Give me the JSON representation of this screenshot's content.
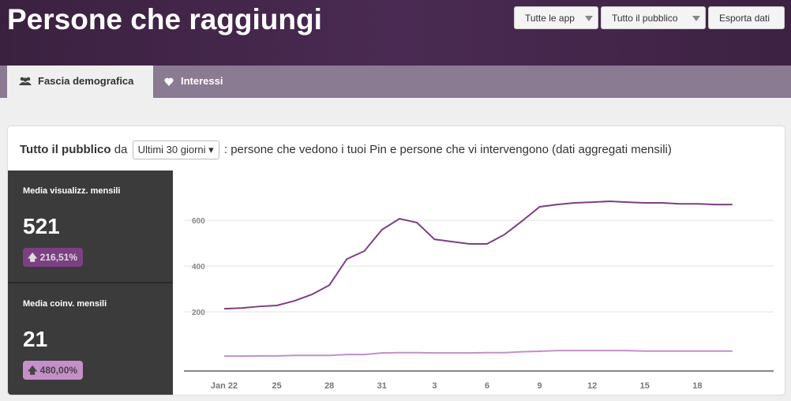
{
  "header": {
    "title": "Persone che raggiungi",
    "buttons": [
      "Tutte le app",
      "Tutto il pubblico",
      "Esporta dati"
    ]
  },
  "tabs": [
    "Fascia demografica",
    "Interessi"
  ],
  "card": {
    "audience": "Tutto il pubblico",
    "from": "da",
    "period": "Ultimi 30 giorni",
    "description": ": persone che vedono i tuoi Pin e persone che vi intervengono (dati aggregati mensili)"
  },
  "stats": [
    {
      "label": "Media visualizz. mensili",
      "value": "521",
      "change": "216,51%"
    },
    {
      "label": "Media coinv. mensili",
      "value": "21",
      "change": "480,00%"
    }
  ],
  "chart": {
    "type": "line",
    "categories": [
      "Jan 22",
      null,
      null,
      "25",
      null,
      null,
      "28",
      null,
      null,
      "31",
      null,
      null,
      "3",
      null,
      null,
      "6",
      null,
      null,
      "9",
      null,
      null,
      "12",
      null,
      null,
      "15",
      null,
      null,
      "18",
      null,
      null
    ],
    "series": [
      {
        "color": "#7d3f83",
        "values": [
          214,
          217,
          224,
          228,
          248,
          276,
          317,
          431,
          466,
          559,
          607,
          590,
          517,
          507,
          497,
          497,
          538,
          597,
          659,
          669,
          676,
          679,
          683,
          679,
          676,
          676,
          672,
          672,
          669,
          669
        ]
      },
      {
        "color": "#c58fca",
        "values": [
          7,
          7,
          8,
          8,
          10,
          10,
          10,
          14,
          14,
          21,
          22,
          22,
          21,
          21,
          21,
          22,
          22,
          26,
          28,
          31,
          31,
          31,
          31,
          31,
          29,
          29,
          29,
          29,
          29,
          29
        ]
      }
    ],
    "ylim": [
      -58,
      752
    ],
    "yticks": [
      200,
      400,
      600
    ],
    "grid": true
  }
}
